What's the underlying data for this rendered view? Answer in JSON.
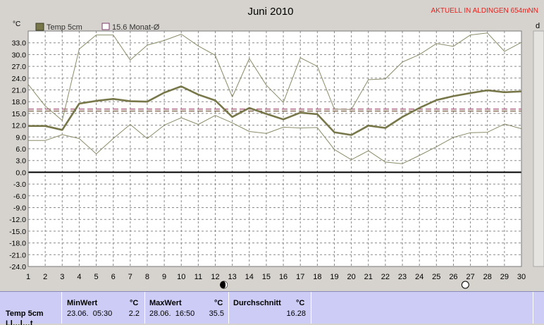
{
  "chart_data": {
    "type": "line",
    "title": "Juni 2010",
    "station": "AKTUELL IN ALDINGEN 654mNN",
    "y_unit": "°C",
    "right_axis_char": "d",
    "ylim": [
      -24,
      36
    ],
    "yticks": [
      "33.0",
      "30.0",
      "27.0",
      "24.0",
      "21.0",
      "18.0",
      "15.0",
      "12.0",
      "9.0",
      "6.0",
      "3.0",
      "0.0",
      "-3.0",
      "-6.0",
      "-9.0",
      "-12.0",
      "-15.0",
      "-18.0",
      "-21.0",
      "-24.0"
    ],
    "x": [
      1,
      2,
      3,
      4,
      5,
      6,
      7,
      8,
      9,
      10,
      11,
      12,
      13,
      14,
      15,
      16,
      17,
      18,
      19,
      20,
      21,
      22,
      23,
      24,
      25,
      26,
      27,
      28,
      29,
      30
    ],
    "grid": true,
    "legend": {
      "placement": "top-left",
      "series_label": "Temp 5cm",
      "mean_label": "15.6 Monat-Ø"
    },
    "series": [
      {
        "name": "Temp 5cm",
        "color": "#77774a",
        "values": [
          11.8,
          11.8,
          10.8,
          17.5,
          18.2,
          18.7,
          18.1,
          18.0,
          20.3,
          21.9,
          19.8,
          18.3,
          14.1,
          16.4,
          14.9,
          13.5,
          15.2,
          14.8,
          10.2,
          9.5,
          11.9,
          11.3,
          14.1,
          16.4,
          18.4,
          19.4,
          20.2,
          20.9,
          20.4,
          20.6
        ]
      },
      {
        "name": "Max",
        "color": "#8c8c6a",
        "values": [
          22.4,
          16.9,
          13.2,
          31.4,
          35.0,
          35.0,
          28.6,
          32.4,
          33.6,
          35.2,
          32.2,
          29.8,
          19.2,
          29.0,
          22.2,
          17.8,
          29.2,
          27.0,
          16.1,
          16.0,
          23.6,
          23.8,
          28.1,
          30.0,
          32.8,
          32.1,
          35.0,
          35.5,
          30.8,
          33.1
        ]
      },
      {
        "name": "Min",
        "color": "#8c8c6a",
        "values": [
          8.1,
          8.1,
          9.6,
          8.6,
          4.7,
          8.6,
          12.2,
          8.6,
          12.0,
          13.9,
          12.2,
          14.5,
          12.6,
          10.4,
          9.9,
          11.5,
          11.3,
          11.4,
          5.8,
          3.2,
          5.5,
          2.6,
          2.2,
          4.3,
          6.5,
          8.9,
          10.1,
          10.2,
          12.3,
          11.1
        ]
      }
    ],
    "monthly_mean": 15.6,
    "mean_lines": [
      {
        "value": 16.1,
        "color": "#a05070"
      },
      {
        "value": 15.6,
        "color": "#806850"
      }
    ],
    "moon_markers": [
      {
        "day": 12.5,
        "phase": "new"
      },
      {
        "day": 26.7,
        "phase": "full"
      }
    ]
  },
  "stats": {
    "row_label": "Temp 5cm",
    "row_label2": "Ll…l…t",
    "min": {
      "header": "MinWert",
      "unit": "°C",
      "when": "23.06.  05:30",
      "value": "2.2"
    },
    "max": {
      "header": "MaxWert",
      "unit": "°C",
      "when": "28.06.  16:50",
      "value": "35.5"
    },
    "avg": {
      "header": "Durchschnitt",
      "unit": "°C",
      "value": "16.28"
    }
  }
}
